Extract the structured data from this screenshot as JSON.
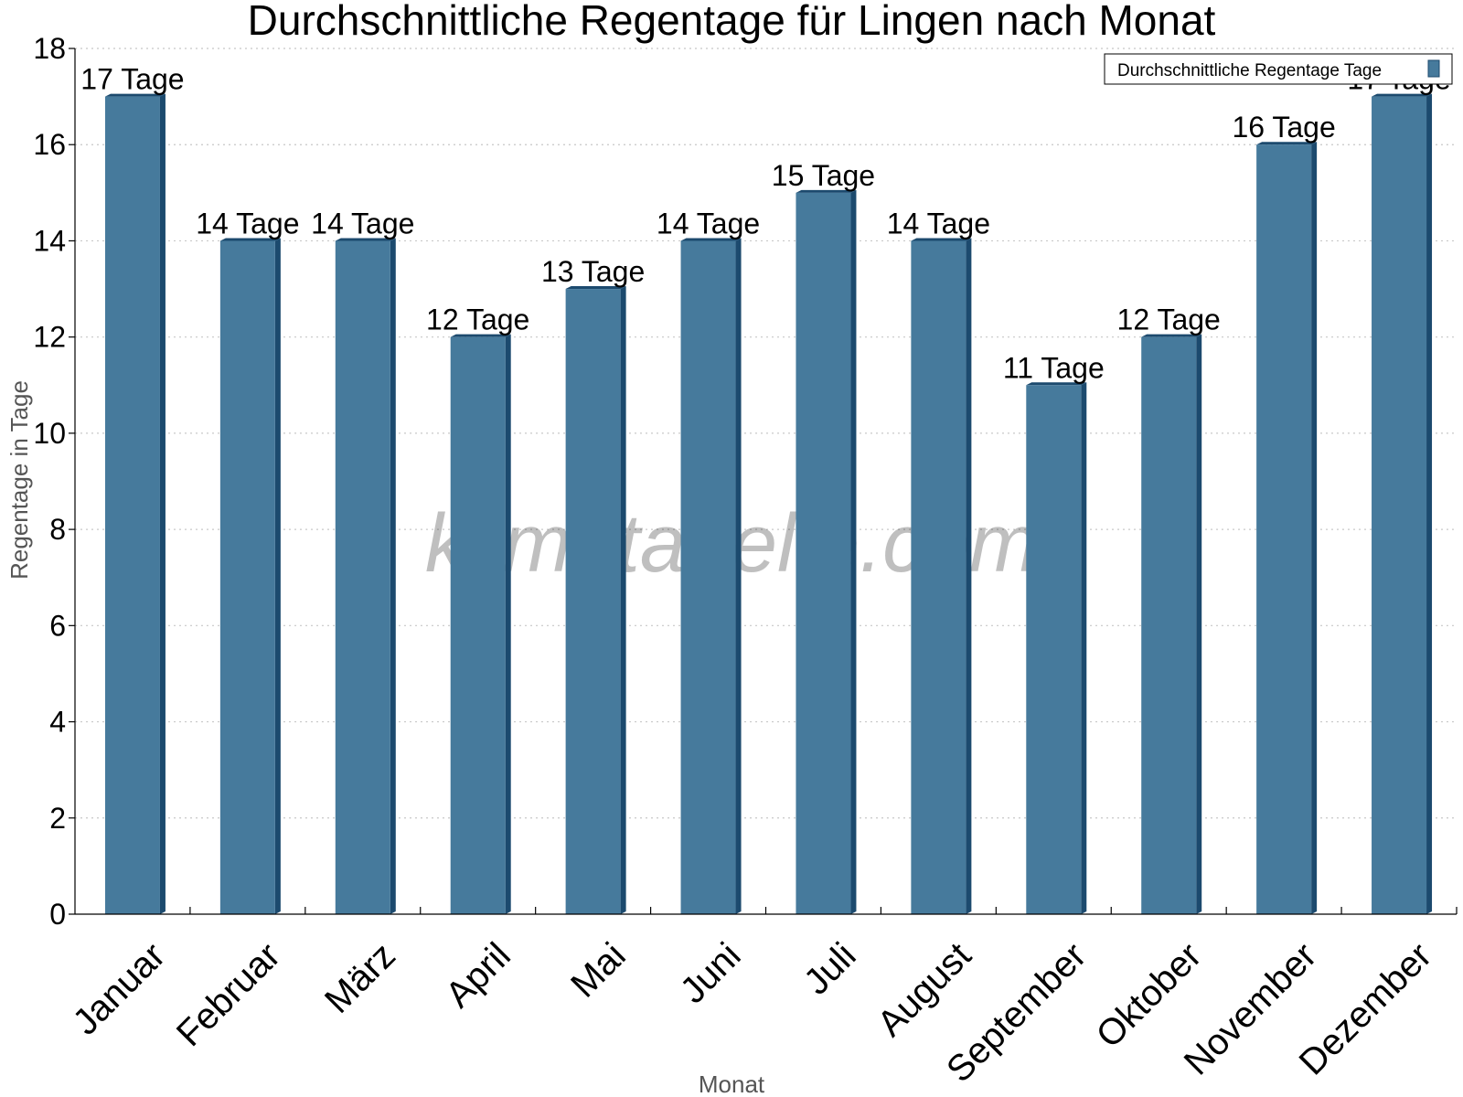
{
  "chart_data": {
    "type": "bar",
    "title": "Durchschnittliche Regentage für Lingen nach Monat",
    "xlabel": "Monat",
    "ylabel": "Regentage in Tage",
    "categories": [
      "Januar",
      "Februar",
      "März",
      "April",
      "Mai",
      "Juni",
      "Juli",
      "August",
      "September",
      "Oktober",
      "November",
      "Dezember"
    ],
    "series": [
      {
        "name": "Durchschnittliche Regentage Tage",
        "values": [
          17,
          14,
          14,
          12,
          13,
          14,
          15,
          14,
          11,
          12,
          16,
          17
        ],
        "data_labels": [
          "17 Tage",
          "14 Tage",
          "14 Tage",
          "12 Tage",
          "13 Tage",
          "14 Tage",
          "15 Tage",
          "14 Tage",
          "11 Tage",
          "12 Tage",
          "16 Tage",
          "17 Tage"
        ]
      }
    ],
    "ylim": [
      0,
      18
    ],
    "yticks": [
      0,
      2,
      4,
      6,
      8,
      10,
      12,
      14,
      16,
      18
    ],
    "grid": "horizontal-dotted",
    "legend_position": "top-right",
    "watermark": "klimatabelle.com",
    "colors": {
      "bar_front": "#467a9c",
      "bar_side": "#1c4a6e",
      "bar_top": "#1c4a6e",
      "grid": "#c8c8c8",
      "axis": "#000000"
    }
  }
}
